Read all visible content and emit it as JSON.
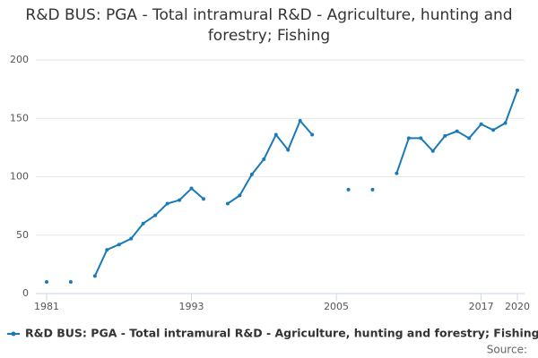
{
  "chart_data": {
    "type": "line",
    "title": "R&D BUS: PGA - Total intramural R&D - Agriculture, hunting and forestry; Fishing",
    "x": [
      1981,
      1982,
      1983,
      1984,
      1985,
      1986,
      1987,
      1988,
      1989,
      1990,
      1991,
      1992,
      1993,
      1994,
      1995,
      1996,
      1997,
      1998,
      1999,
      2000,
      2001,
      2002,
      2003,
      2004,
      2005,
      2006,
      2007,
      2008,
      2009,
      2010,
      2011,
      2012,
      2013,
      2014,
      2015,
      2016,
      2017,
      2018,
      2019,
      2020
    ],
    "series": [
      {
        "name": "R&D BUS: PGA - Total intramural R&D - Agriculture, hunting and forestry; Fishing",
        "color": "#1a7ab8",
        "values": [
          10,
          null,
          10,
          null,
          15,
          37.5,
          42,
          47,
          60,
          67,
          77,
          80,
          90,
          81,
          null,
          77,
          84,
          102,
          115,
          136,
          123,
          148,
          136,
          null,
          null,
          89,
          null,
          89,
          null,
          103,
          133,
          133,
          122,
          135,
          139,
          133,
          145,
          140,
          146,
          174
        ]
      }
    ],
    "xlim": [
      1981,
      2020
    ],
    "xticks": [
      1981,
      1993,
      2005,
      2017,
      2020
    ],
    "ylim": [
      0,
      200
    ],
    "yticks": [
      0,
      50,
      100,
      150,
      200
    ],
    "grid": true,
    "source": "Source:"
  }
}
